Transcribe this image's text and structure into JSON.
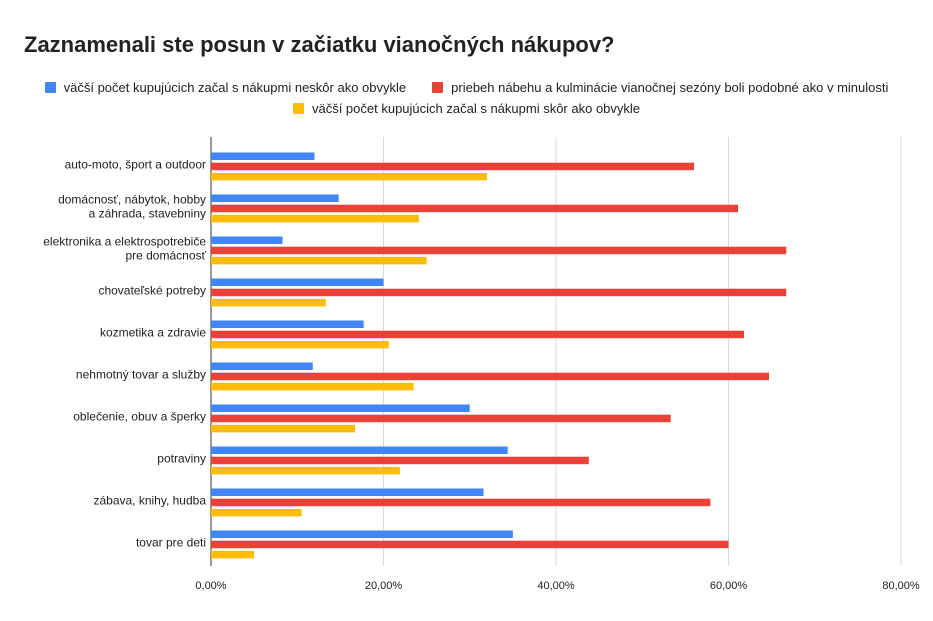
{
  "chart_data": {
    "type": "bar",
    "orientation": "horizontal",
    "title": "Zaznamenali ste posun v začiatku vianočných nákupov?",
    "categories": [
      [
        "auto-moto, šport a outdoor"
      ],
      [
        "domácnosť, nábytok, hobby",
        "a záhrada, stavebniny"
      ],
      [
        "elektronika a elektrospotrebiče",
        "pre domácnosť"
      ],
      [
        "chovateľské potreby"
      ],
      [
        "kozmetika a zdravie"
      ],
      [
        "nehmotný tovar a služby"
      ],
      [
        "oblečenie, obuv a šperky"
      ],
      [
        "potraviny"
      ],
      [
        "zábava, knihy, hudba"
      ],
      [
        "tovar pre deti"
      ]
    ],
    "series": [
      {
        "name": "väčší počet kupujúcich začal s nákupmi neskôr ako obvykle",
        "color": "#4285F4",
        "values": [
          12.0,
          14.8,
          8.3,
          20.0,
          17.7,
          11.8,
          30.0,
          34.4,
          31.6,
          35.0
        ]
      },
      {
        "name": "priebeh nábehu a kulminácie vianočnej sezóny boli podobné ako v minulosti",
        "color": "#EA4335",
        "values": [
          56.0,
          61.1,
          66.7,
          66.7,
          61.8,
          64.7,
          53.3,
          43.8,
          57.9,
          60.0
        ]
      },
      {
        "name": "väčší počet kupujúcich začal s nákupmi skôr ako obvykle",
        "color": "#FBBC04",
        "values": [
          32.0,
          24.1,
          25.0,
          13.3,
          20.6,
          23.5,
          16.7,
          21.9,
          10.5,
          5.0
        ]
      }
    ],
    "xlim": [
      0,
      80
    ],
    "ticks": [
      0,
      20,
      40,
      60,
      80
    ],
    "tick_labels": [
      "0,00%",
      "20,00%",
      "40,00%",
      "60,00%",
      "80,00%"
    ],
    "xlabel": "",
    "ylabel": "",
    "grid": true,
    "legend": "top"
  }
}
